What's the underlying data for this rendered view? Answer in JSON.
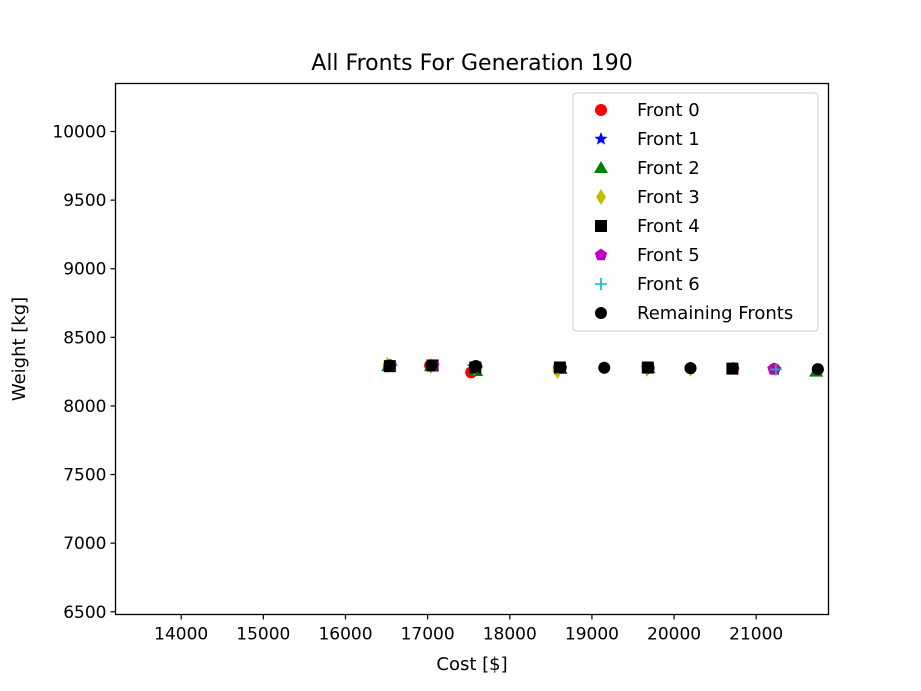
{
  "chart_data": {
    "type": "scatter",
    "title": "All Fronts For Generation 190",
    "xlabel": "Cost [$]",
    "ylabel": "Weight [kg]",
    "xlim": [
      13200,
      21880
    ],
    "ylim": [
      6480,
      10350
    ],
    "xticks": [
      14000,
      15000,
      16000,
      17000,
      18000,
      19000,
      20000,
      21000
    ],
    "yticks": [
      6500,
      7000,
      7500,
      8000,
      8500,
      9000,
      9500,
      10000
    ],
    "grid": false,
    "legend_position": "top-right",
    "series": [
      {
        "name": "Front 0",
        "marker": "circle",
        "color": "#ff0000",
        "points": [
          [
            16530,
            8290
          ],
          [
            17030,
            8295
          ],
          [
            17530,
            8245
          ],
          [
            17580,
            8290
          ],
          [
            18600,
            8280
          ],
          [
            19680,
            8280
          ],
          [
            20200,
            8275
          ],
          [
            20720,
            8275
          ],
          [
            21220,
            8270
          ],
          [
            21750,
            8265
          ]
        ]
      },
      {
        "name": "Front 1",
        "marker": "star",
        "color": "#0000ff",
        "points": [
          [
            16530,
            8285
          ],
          [
            17050,
            8290
          ],
          [
            17560,
            8285
          ],
          [
            18610,
            8275
          ],
          [
            19680,
            8275
          ],
          [
            21230,
            8265
          ]
        ]
      },
      {
        "name": "Front 2",
        "marker": "triangle",
        "color": "#008000",
        "points": [
          [
            16520,
            8290
          ],
          [
            17040,
            8290
          ],
          [
            17590,
            8255
          ],
          [
            18620,
            8270
          ],
          [
            19690,
            8275
          ],
          [
            21730,
            8250
          ]
        ]
      },
      {
        "name": "Front 3",
        "marker": "diamond",
        "color": "#bfbf00",
        "points": [
          [
            16510,
            8300
          ],
          [
            17040,
            8290
          ],
          [
            17570,
            8280
          ],
          [
            18580,
            8255
          ],
          [
            19670,
            8270
          ],
          [
            20200,
            8270
          ]
        ]
      },
      {
        "name": "Front 4",
        "marker": "square",
        "color": "#000000",
        "points": [
          [
            16540,
            8290
          ],
          [
            17060,
            8295
          ],
          [
            17580,
            8280
          ],
          [
            18610,
            8280
          ],
          [
            19680,
            8280
          ],
          [
            20710,
            8272
          ]
        ]
      },
      {
        "name": "Front 5",
        "marker": "pentagon",
        "color": "#bf00bf",
        "points": [
          [
            16550,
            8295
          ],
          [
            17070,
            8295
          ],
          [
            18620,
            8275
          ],
          [
            21210,
            8268
          ]
        ]
      },
      {
        "name": "Front 6",
        "marker": "plus",
        "color": "#00bfbf",
        "points": [
          [
            16560,
            8295
          ],
          [
            17600,
            8285
          ],
          [
            19150,
            8278
          ],
          [
            21240,
            8266
          ]
        ]
      },
      {
        "name": "Remaining Fronts",
        "marker": "circle",
        "color": "#000000",
        "points": [
          [
            16540,
            8295
          ],
          [
            17050,
            8295
          ],
          [
            17590,
            8290
          ],
          [
            18620,
            8280
          ],
          [
            19150,
            8278
          ],
          [
            19690,
            8278
          ],
          [
            20200,
            8276
          ],
          [
            21750,
            8268
          ]
        ]
      }
    ]
  }
}
